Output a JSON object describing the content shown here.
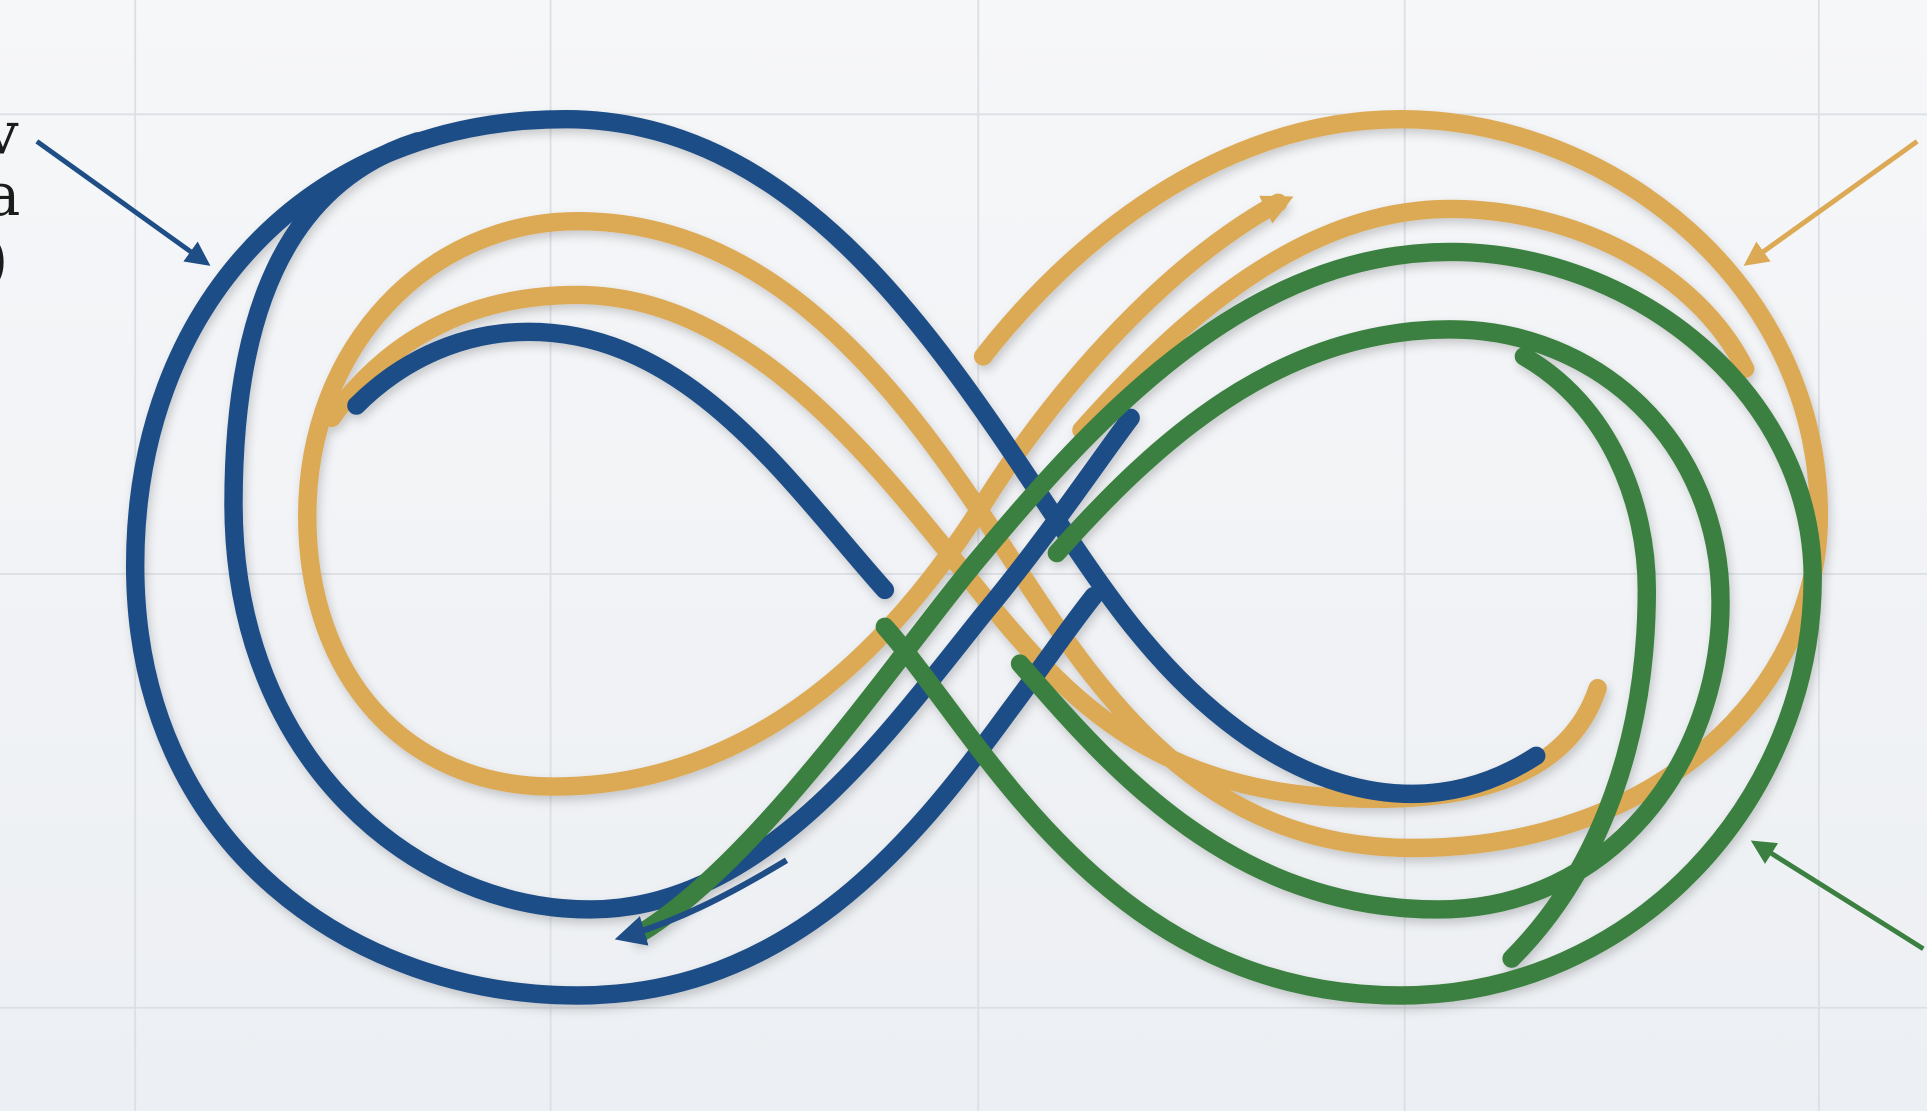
{
  "left_label": [
    "v",
    "a",
    ")"
  ]
}
